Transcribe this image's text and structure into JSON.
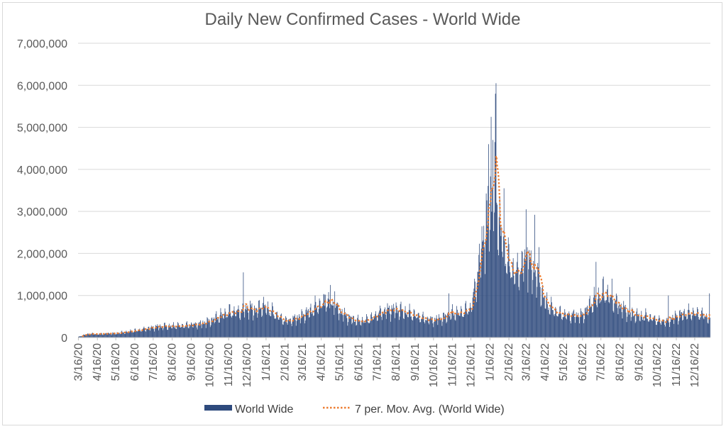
{
  "chart_data": {
    "type": "bar",
    "title": "Daily New Confirmed Cases - World Wide",
    "xlabel": "",
    "ylabel": "",
    "ylim": [
      0,
      7000000
    ],
    "y_ticks": [
      0,
      1000000,
      2000000,
      3000000,
      4000000,
      5000000,
      6000000,
      7000000
    ],
    "y_tick_labels": [
      "0",
      "1,000,000",
      "2,000,000",
      "3,000,000",
      "4,000,000",
      "5,000,000",
      "6,000,000",
      "7,000,000"
    ],
    "x_tick_labels": [
      "3/16/20",
      "4/16/20",
      "5/16/20",
      "6/16/20",
      "7/16/20",
      "8/16/20",
      "9/16/20",
      "10/16/20",
      "11/16/20",
      "12/16/20",
      "1/16/21",
      "2/16/21",
      "3/16/21",
      "4/16/21",
      "5/16/21",
      "6/16/21",
      "7/16/21",
      "8/16/21",
      "9/16/21",
      "10/16/21",
      "11/16/21",
      "12/16/21",
      "1/16/22",
      "2/16/22",
      "3/16/22",
      "4/16/22",
      "5/16/22",
      "6/16/22",
      "7/16/22",
      "8/16/22",
      "9/16/22",
      "10/16/22",
      "11/16/22",
      "12/16/22"
    ],
    "x_start": "3/16/20",
    "x_end": "1/10/23",
    "grid": true,
    "legend_position": "bottom",
    "series": [
      {
        "name": "World Wide",
        "type": "bar",
        "color": "#2e4a7d",
        "anchors": [
          [
            "3/16/20",
            15000
          ],
          [
            "3/26/20",
            65000
          ],
          [
            "4/5/20",
            85000
          ],
          [
            "4/16/20",
            85000
          ],
          [
            "5/1/20",
            90000
          ],
          [
            "5/16/20",
            100000
          ],
          [
            "6/1/20",
            125000
          ],
          [
            "6/16/20",
            160000
          ],
          [
            "7/1/20",
            195000
          ],
          [
            "7/16/20",
            240000
          ],
          [
            "8/1/20",
            265000
          ],
          [
            "8/16/20",
            265000
          ],
          [
            "9/1/20",
            275000
          ],
          [
            "9/16/20",
            295000
          ],
          [
            "10/1/20",
            320000
          ],
          [
            "10/16/20",
            380000
          ],
          [
            "11/1/20",
            500000
          ],
          [
            "11/16/20",
            590000
          ],
          [
            "12/1/20",
            610000
          ],
          [
            "12/16/20",
            690000
          ],
          [
            "1/1/21",
            640000
          ],
          [
            "1/10/21",
            740000
          ],
          [
            "1/16/21",
            700000
          ],
          [
            "2/1/21",
            530000
          ],
          [
            "2/16/21",
            390000
          ],
          [
            "3/1/21",
            420000
          ],
          [
            "3/16/21",
            510000
          ],
          [
            "4/1/21",
            650000
          ],
          [
            "4/16/21",
            790000
          ],
          [
            "4/28/21",
            820000
          ],
          [
            "5/16/21",
            620000
          ],
          [
            "6/1/21",
            450000
          ],
          [
            "6/16/21",
            380000
          ],
          [
            "7/1/21",
            410000
          ],
          [
            "7/16/21",
            540000
          ],
          [
            "8/1/21",
            640000
          ],
          [
            "8/16/21",
            660000
          ],
          [
            "9/1/21",
            600000
          ],
          [
            "9/16/21",
            520000
          ],
          [
            "10/1/21",
            440000
          ],
          [
            "10/16/21",
            410000
          ],
          [
            "11/1/21",
            460000
          ],
          [
            "11/16/21",
            560000
          ],
          [
            "12/1/21",
            590000
          ],
          [
            "12/16/21",
            700000
          ],
          [
            "12/25/21",
            1300000
          ],
          [
            "1/1/22",
            2000000
          ],
          [
            "1/10/22",
            2700000
          ],
          [
            "1/19/22",
            3400000
          ],
          [
            "1/24/22",
            3600000
          ],
          [
            "2/1/22",
            2600000
          ],
          [
            "2/16/22",
            1700000
          ],
          [
            "3/1/22",
            1500000
          ],
          [
            "3/16/22",
            1850000
          ],
          [
            "3/25/22",
            1600000
          ],
          [
            "4/1/22",
            1450000
          ],
          [
            "4/16/22",
            850000
          ],
          [
            "5/1/22",
            620000
          ],
          [
            "5/16/22",
            540000
          ],
          [
            "6/1/22",
            520000
          ],
          [
            "6/16/22",
            520000
          ],
          [
            "7/1/22",
            820000
          ],
          [
            "7/16/22",
            1000000
          ],
          [
            "7/24/22",
            1050000
          ],
          [
            "8/1/22",
            920000
          ],
          [
            "8/16/22",
            740000
          ],
          [
            "9/1/22",
            560000
          ],
          [
            "9/16/22",
            510000
          ],
          [
            "10/1/22",
            480000
          ],
          [
            "10/16/22",
            400000
          ],
          [
            "11/1/22",
            380000
          ],
          [
            "11/16/22",
            500000
          ],
          [
            "12/1/22",
            560000
          ],
          [
            "12/16/22",
            570000
          ],
          [
            "1/1/23",
            520000
          ],
          [
            "1/10/23",
            420000
          ]
        ],
        "spikes": [
          [
            "12/10/20",
            1550000
          ],
          [
            "4/23/21",
            1020000
          ],
          [
            "5/1/21",
            1250000
          ],
          [
            "5/8/21",
            1100000
          ],
          [
            "11/10/21",
            1050000
          ],
          [
            "1/12/22",
            2650000
          ],
          [
            "1/14/22",
            4600000
          ],
          [
            "1/18/22",
            5250000
          ],
          [
            "1/21/22",
            4700000
          ],
          [
            "1/25/22",
            5800000
          ],
          [
            "1/26/22",
            6050000
          ],
          [
            "2/8/22",
            3550000
          ],
          [
            "3/16/22",
            3050000
          ],
          [
            "3/18/22",
            2150000
          ],
          [
            "3/30/22",
            2920000
          ],
          [
            "4/6/22",
            2150000
          ],
          [
            "7/8/22",
            1800000
          ],
          [
            "7/20/22",
            1450000
          ],
          [
            "8/3/22",
            1400000
          ],
          [
            "9/1/22",
            1200000
          ],
          [
            "11/3/22",
            1000000
          ],
          [
            "1/9/23",
            1050000
          ]
        ]
      },
      {
        "name": "7 per. Mov. Avg. (World Wide)",
        "type": "line",
        "style": "dotted",
        "color": "#ed7d31"
      }
    ]
  },
  "legend": {
    "bar_label": "World Wide",
    "line_label": "7 per. Mov. Avg. (World Wide)"
  }
}
